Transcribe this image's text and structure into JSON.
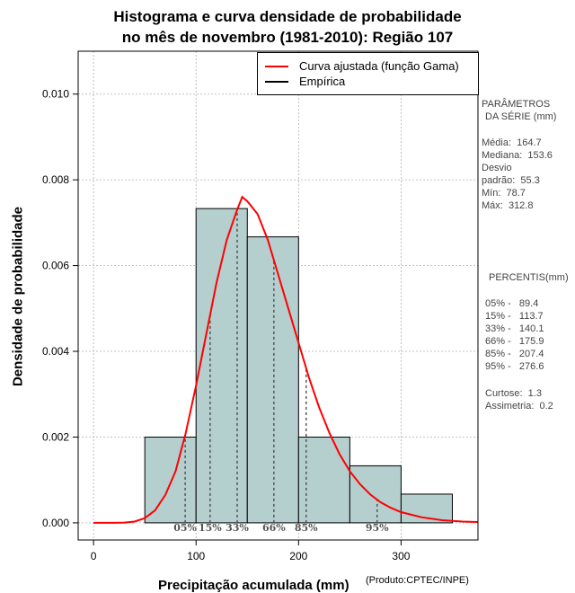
{
  "title_line1": "Histograma e curva densidade de probabilidade",
  "title_line2": "no mês de novembro (1981-2010): Região 107",
  "credit": "(Produto:CPTEC/INPE)",
  "legend": {
    "fitted_label": "Curva ajustada (função Gama)",
    "empirical_label": "Empírica"
  },
  "side": {
    "params_title_1": "PARÂMETROS",
    "params_title_2": "DA SÉRIE (mm)",
    "mean": "Média:  164.7",
    "median": "Mediana:  153.6",
    "sd_1": "Desvio",
    "sd_2": "padrão:  55.3",
    "min": "Mín:  78.7",
    "max": "Máx:  312.8",
    "pct_title": "PERCENTIS(mm)",
    "p05": "05% -   89.4",
    "p15": "15% -   113.7",
    "p33": "33% -   140.1",
    "p66": "66% -   175.9",
    "p85": "85% -   207.4",
    "p95": "95% -   276.6",
    "kurtosis": "Curtose:  1.3",
    "skewness": "Assimetria:  0.2"
  },
  "colors": {
    "bar_fill": "#b5cece",
    "curve": "#ff0000",
    "grid": "#b0b0b0",
    "pct_line": "#555555"
  },
  "chart_data": {
    "type": "bar",
    "title": "Histograma e curva densidade de probabilidade no mês de novembro (1981-2010): Região 107",
    "xlabel": "Precipitação acumulada (mm)",
    "ylabel": "Densidade de probabilidade",
    "xlim": [
      -15,
      375
    ],
    "ylim": [
      -0.0004,
      0.011
    ],
    "xticks": [
      0,
      100,
      200,
      300
    ],
    "xtick_labels": [
      "0",
      "100",
      "200",
      "300"
    ],
    "yticks": [
      0,
      0.002,
      0.004,
      0.006,
      0.008,
      0.01
    ],
    "ytick_labels": [
      "0.000",
      "0.002",
      "0.004",
      "0.006",
      "0.008",
      "0.010"
    ],
    "grid": true,
    "legend_position": "top-right",
    "bins": [
      {
        "from": 50,
        "to": 100,
        "density": 0.002
      },
      {
        "from": 100,
        "to": 150,
        "density": 0.00733
      },
      {
        "from": 150,
        "to": 200,
        "density": 0.00667
      },
      {
        "from": 200,
        "to": 250,
        "density": 0.002
      },
      {
        "from": 250,
        "to": 300,
        "density": 0.00133
      },
      {
        "from": 300,
        "to": 350,
        "density": 0.00067
      }
    ],
    "fitted_curve": {
      "name": "Curva ajustada (função Gama)",
      "x": [
        0,
        20,
        30,
        40,
        50,
        60,
        70,
        80,
        90,
        100,
        110,
        120,
        130,
        140,
        145,
        150,
        160,
        170,
        180,
        190,
        200,
        210,
        220,
        230,
        240,
        250,
        260,
        270,
        280,
        290,
        300,
        320,
        340,
        360,
        375
      ],
      "y": [
        0,
        1e-06,
        7e-06,
        3e-05,
        0.00011,
        0.00029,
        0.00065,
        0.0012,
        0.0021,
        0.0032,
        0.0044,
        0.0056,
        0.0066,
        0.0073,
        0.0076,
        0.0075,
        0.0072,
        0.0066,
        0.0058,
        0.005,
        0.0042,
        0.0034,
        0.0027,
        0.0021,
        0.0016,
        0.0012,
        0.0009,
        0.00066,
        0.00048,
        0.00035,
        0.00025,
        0.00013,
        6e-05,
        3e-05,
        2e-05
      ]
    },
    "percentiles": [
      {
        "label": "05%",
        "value": 89.4
      },
      {
        "label": "15%",
        "value": 113.7
      },
      {
        "label": "33%",
        "value": 140.1
      },
      {
        "label": "66%",
        "value": 175.9
      },
      {
        "label": "85%",
        "value": 207.4
      },
      {
        "label": "95%",
        "value": 276.6
      }
    ]
  }
}
